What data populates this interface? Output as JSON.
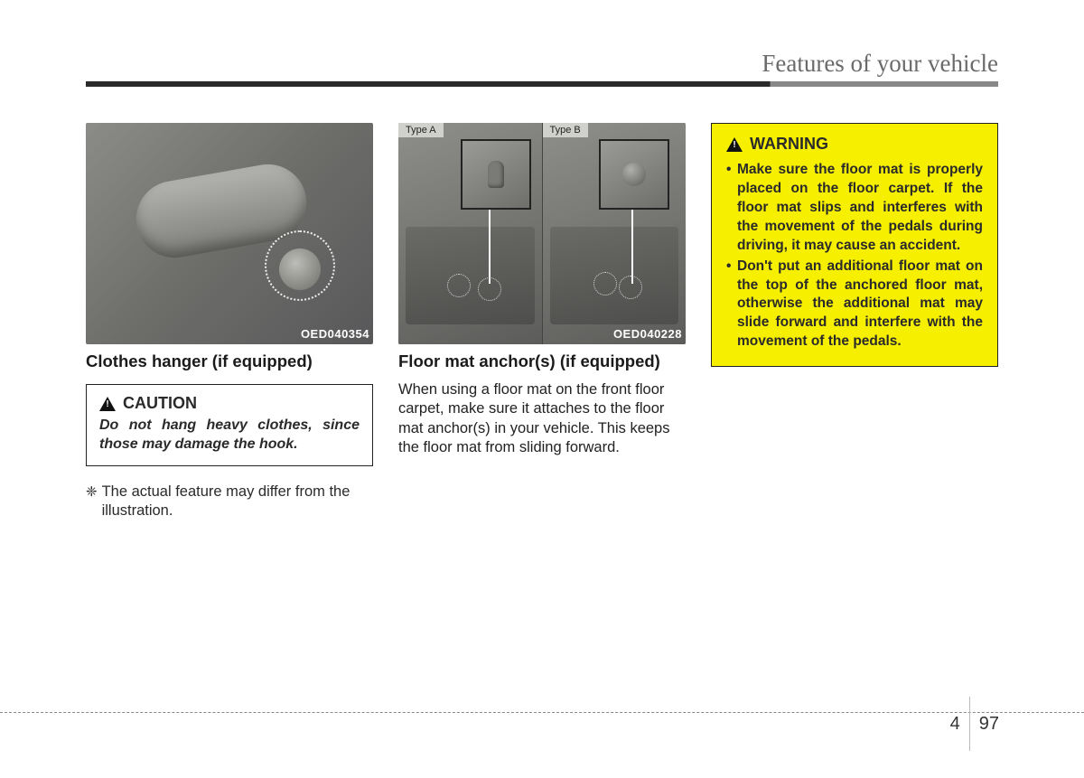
{
  "header": {
    "title": "Features of your vehicle"
  },
  "col1": {
    "fig_code": "OED040354",
    "heading": "Clothes hanger (if equipped)",
    "caution_label": "CAUTION",
    "caution_text": "Do not hang heavy clothes, since those may damage the hook.",
    "note_marker": "❈",
    "note_text": "The actual feature may differ from the illustration."
  },
  "col2": {
    "type_a": "Type A",
    "type_b": "Type B",
    "fig_code": "OED040228",
    "heading": "Floor mat anchor(s) (if equipped)",
    "body": "When using a floor mat on the front floor carpet, make sure it attaches to the floor mat anchor(s) in your vehicle. This keeps the floor mat from sliding forward."
  },
  "col3": {
    "warning_label": "WARNING",
    "items": [
      "Make sure the floor mat is properly placed on the floor carpet. If the floor mat slips and interferes with the movement of the pedals during driving, it may cause an accident.",
      "Don't put an additional floor mat on the top of the anchored floor mat, otherwise the additional mat may slide forward and interfere with the movement of the pedals."
    ]
  },
  "page": {
    "chapter": "4",
    "num": "97"
  }
}
